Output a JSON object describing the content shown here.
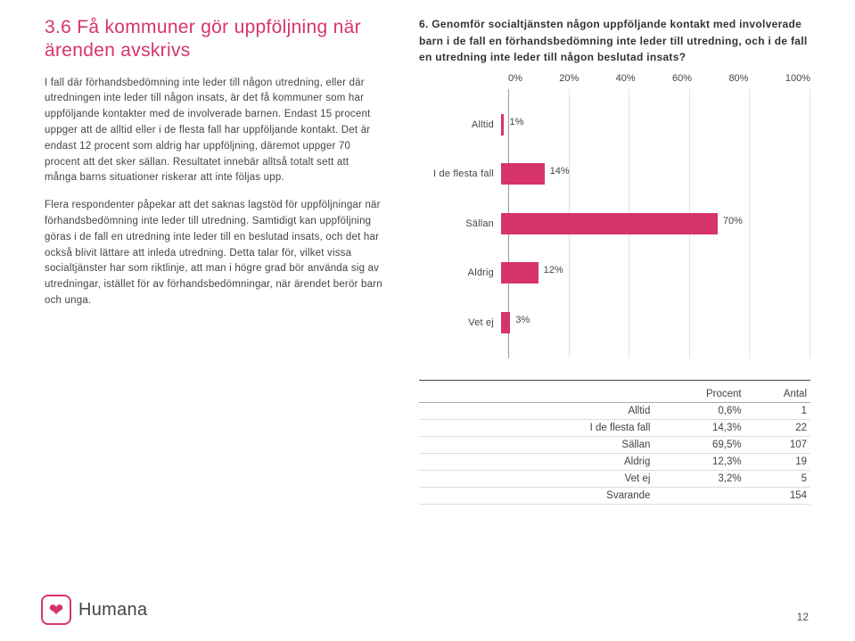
{
  "section": {
    "heading": "3.6 Få kommuner gör upp­följning när ärenden avskrivs",
    "para1": "I fall där förhandsbedömning inte leder till någon utredning, eller där utredningen inte leder till någon insats, är det få kommuner som har uppföljande kontakter med de involverade barnen. Endast 15 procent uppger att de alltid eller i de flesta fall har uppföljande kontakt. Det är endast 12 procent som aldrig har uppföljning, däremot uppger 70 procent att det sker sällan. Resultatet innebär alltså totalt sett att många barns situationer riskerar att inte följas upp.",
    "para2": "Flera respondenter påpekar att det saknas lagstöd för uppföljningar när förhandsbedömning inte leder till utredning. Samtidigt kan uppföljning göras i de fall en utredning inte leder till en beslutad insats, och det har också blivit lättare att inleda utredning. Detta talar för, vilket vissa socialtjänster har som riktlinje, att man i högre grad bör använda sig av utredningar, istället för av förhandsbedömningar, när ärendet berör barn och unga."
  },
  "chart": {
    "title": "6. Genomför socialtjänsten någon uppföljande kontakt med involverade barn i de fall en förhandsbedömning inte leder till utredning, och i de fall en utredning inte leder till någon beslutad insats?",
    "type": "bar",
    "axis_ticks": [
      "0%",
      "20%",
      "40%",
      "60%",
      "80%",
      "100%"
    ],
    "bar_color": "#d6336c",
    "grid_color": "#e2e2e2",
    "categories": [
      {
        "label": "Alltid",
        "value": 1,
        "display": "1%"
      },
      {
        "label": "I de flesta fall",
        "value": 14,
        "display": "14%"
      },
      {
        "label": "Sällan",
        "value": 70,
        "display": "70%"
      },
      {
        "label": "Aldrig",
        "value": 12,
        "display": "12%"
      },
      {
        "label": "Vet ej",
        "value": 3,
        "display": "3%"
      }
    ]
  },
  "table": {
    "headers": [
      "",
      "Procent",
      "Antal"
    ],
    "rows": [
      [
        "Alltid",
        "0,6%",
        "1"
      ],
      [
        "I de flesta fall",
        "14,3%",
        "22"
      ],
      [
        "Sällan",
        "69,5%",
        "107"
      ],
      [
        "Aldrig",
        "12,3%",
        "19"
      ],
      [
        "Vet ej",
        "3,2%",
        "5"
      ],
      [
        "Svarande",
        "",
        "154"
      ]
    ]
  },
  "logo": {
    "text": "Humana"
  },
  "page_number": "12"
}
